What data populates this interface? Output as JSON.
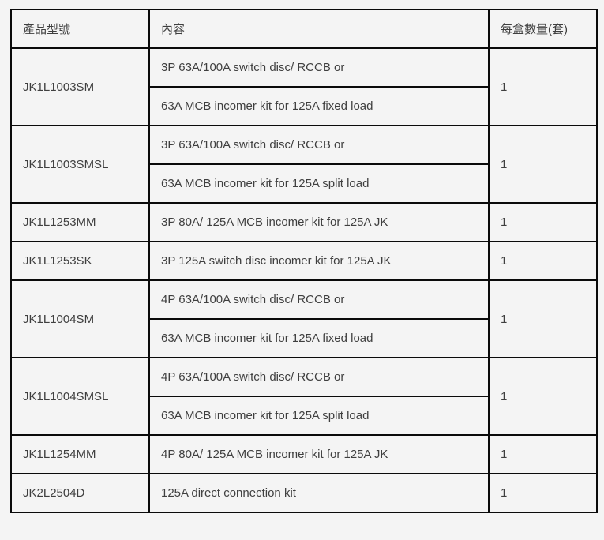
{
  "page": {
    "background_color": "#f4f4f4",
    "border_color": "#0a0a0a",
    "text_color": "#3f3f3f"
  },
  "table": {
    "headers": [
      {
        "label": "產品型號"
      },
      {
        "label": "內容"
      },
      {
        "label": "每盒數量(套)"
      }
    ],
    "rows": [
      {
        "model": "JK1L1003SM",
        "contents": [
          "3P 63A/100A switch disc/ RCCB or",
          "63A MCB incomer kit for 125A fixed load"
        ],
        "qty": "1"
      },
      {
        "model": "JK1L1003SMSL",
        "contents": [
          "3P 63A/100A switch disc/ RCCB or",
          "63A MCB incomer kit for 125A split load"
        ],
        "qty": "1"
      },
      {
        "model": "JK1L1253MM",
        "contents": [
          "3P 80A/ 125A MCB incomer kit for 125A JK"
        ],
        "qty": "1"
      },
      {
        "model": "JK1L1253SK",
        "contents": [
          "3P 125A switch disc incomer kit for 125A JK"
        ],
        "qty": "1"
      },
      {
        "model": "JK1L1004SM",
        "contents": [
          "4P 63A/100A switch disc/ RCCB or",
          "63A MCB incomer kit for 125A fixed load"
        ],
        "qty": "1"
      },
      {
        "model": "JK1L1004SMSL",
        "contents": [
          "4P 63A/100A switch disc/ RCCB or",
          "63A MCB incomer kit for 125A split load"
        ],
        "qty": "1"
      },
      {
        "model": "JK1L1254MM",
        "contents": [
          "4P 80A/ 125A MCB incomer kit for 125A JK"
        ],
        "qty": "1"
      },
      {
        "model": "JK2L2504D",
        "contents": [
          "125A direct connection kit"
        ],
        "qty": "1"
      }
    ]
  }
}
